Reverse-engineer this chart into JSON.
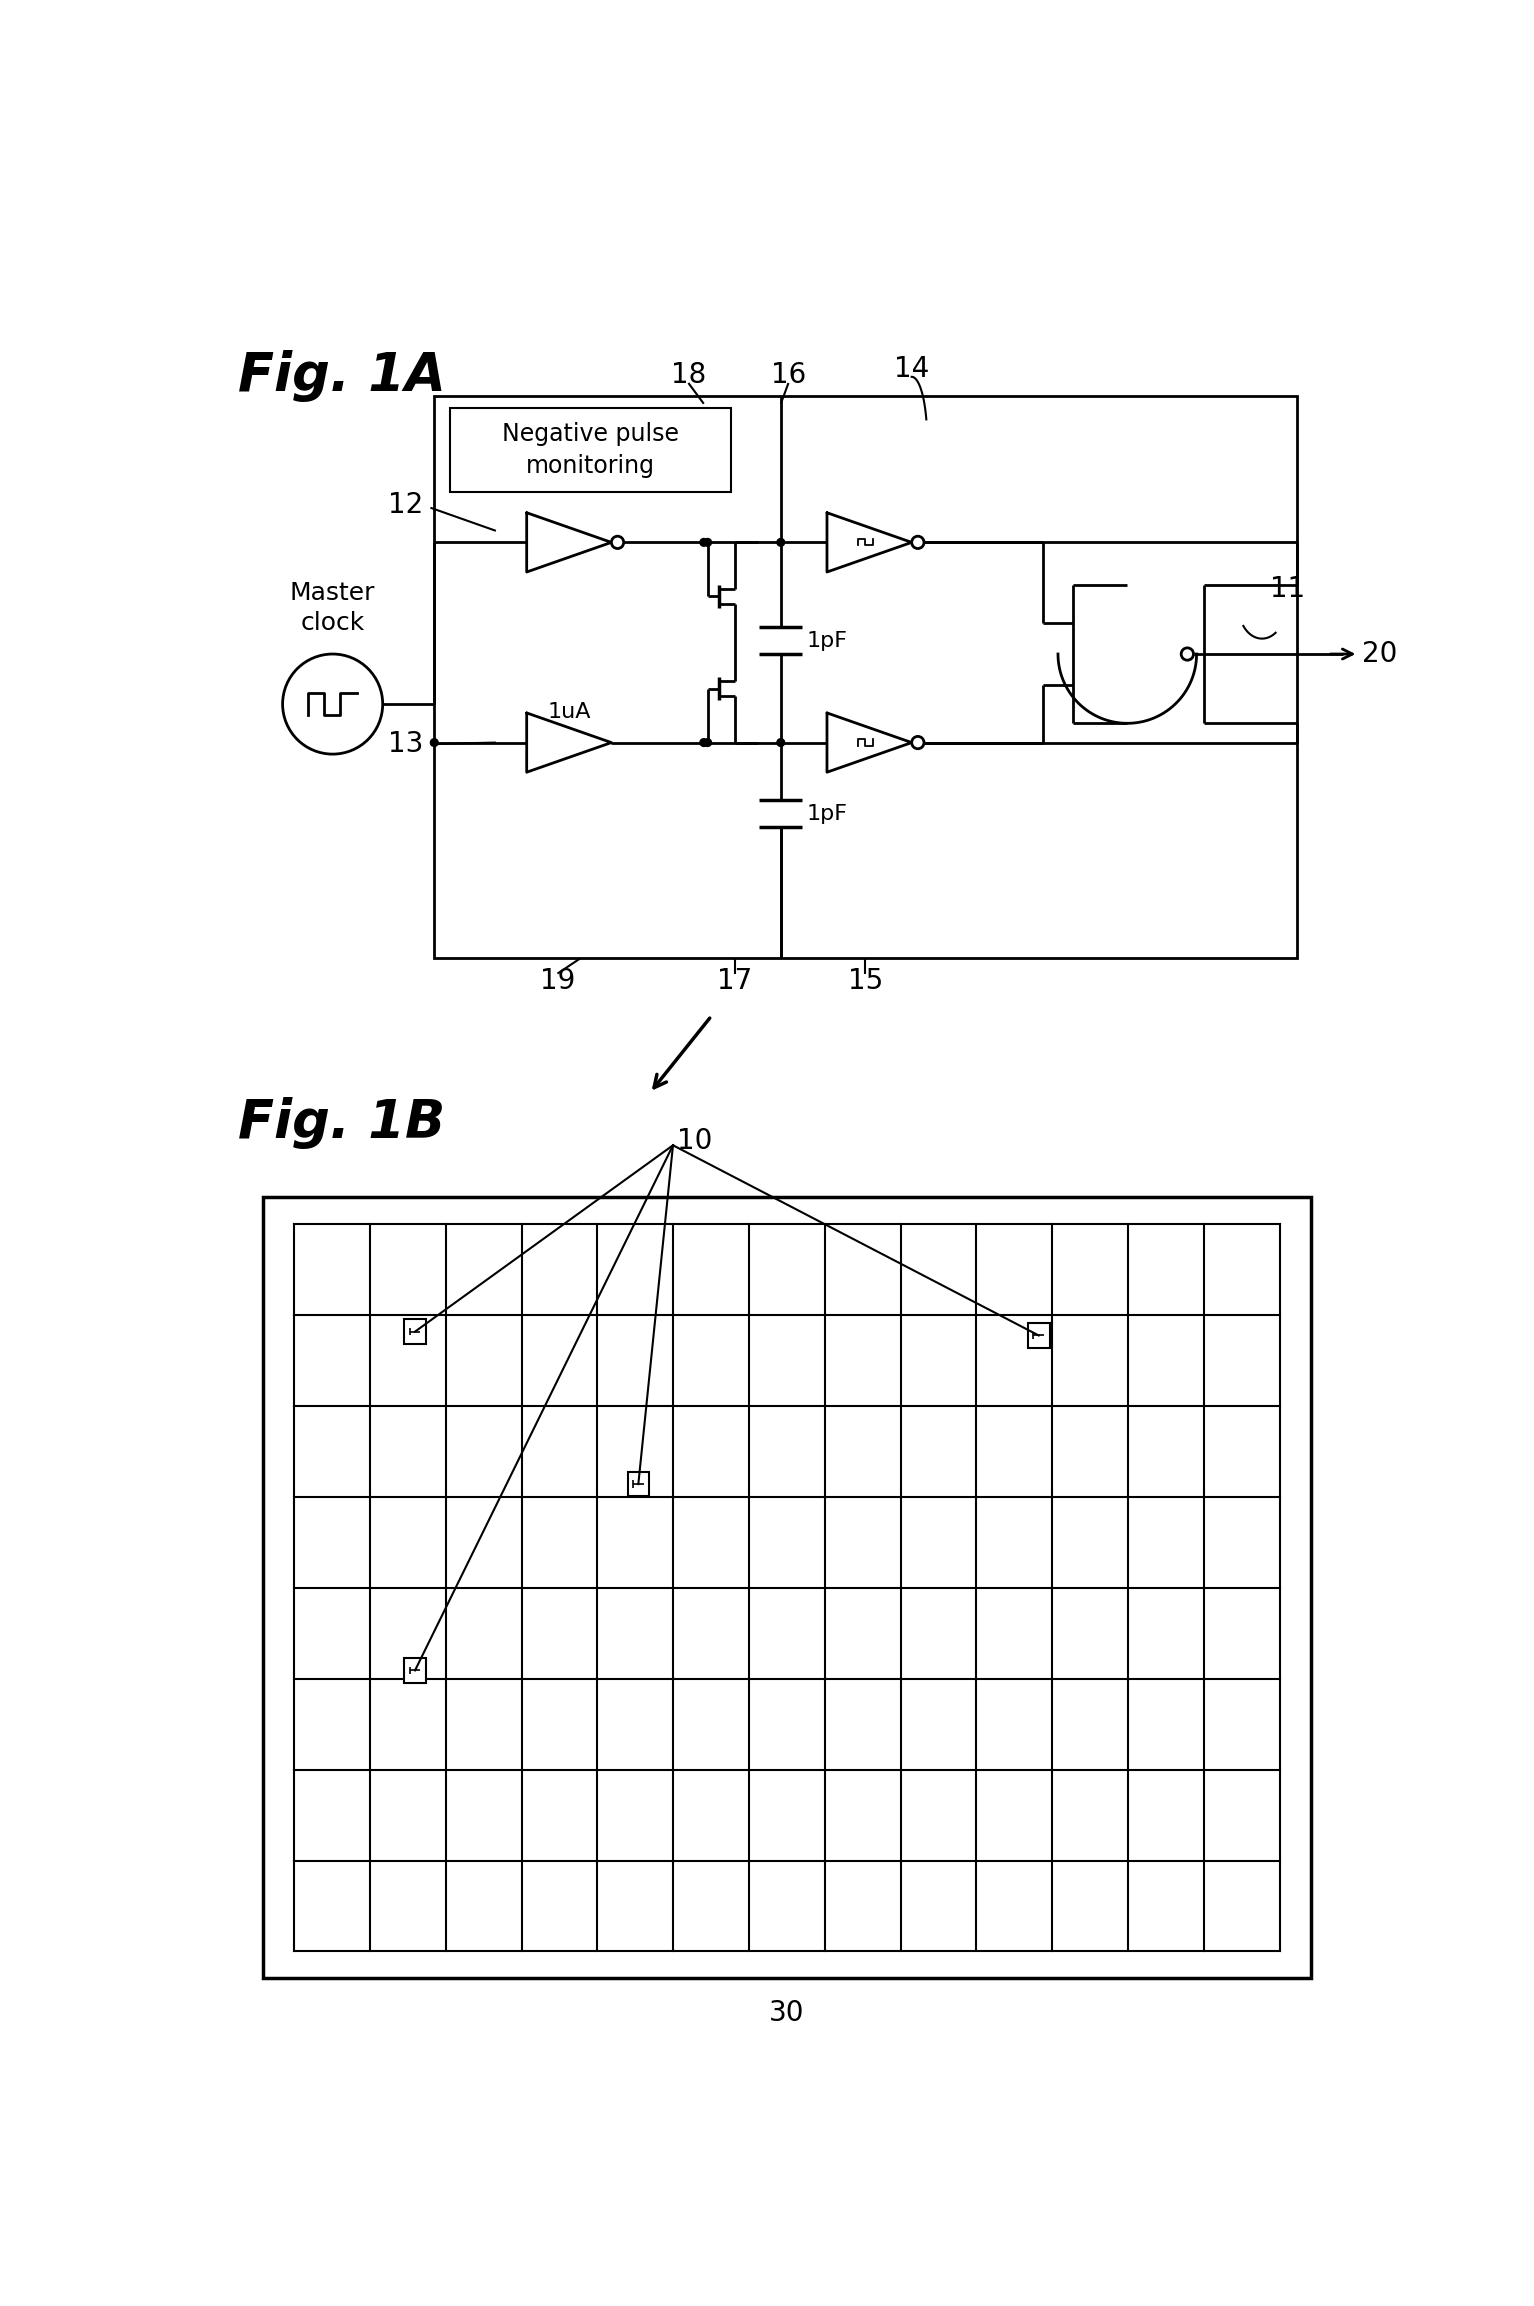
{
  "fig1a_label": "Fig. 1A",
  "fig1b_label": "Fig. 1B",
  "label_12": "12",
  "label_13": "13",
  "label_14": "14",
  "label_15": "15",
  "label_16": "16",
  "label_17": "17",
  "label_18": "18",
  "label_19": "19",
  "label_20": "20",
  "label_10": "10",
  "label_11": "11",
  "label_30": "30",
  "neg_pulse_text": "Negative pulse\nmonitoring",
  "master_clock_text": "Master\nclock",
  "label_1ua": "1uA",
  "label_1pf_top": "1pF",
  "label_1pf_bot": "1pF",
  "bg_color": "#ffffff",
  "line_color": "#000000"
}
